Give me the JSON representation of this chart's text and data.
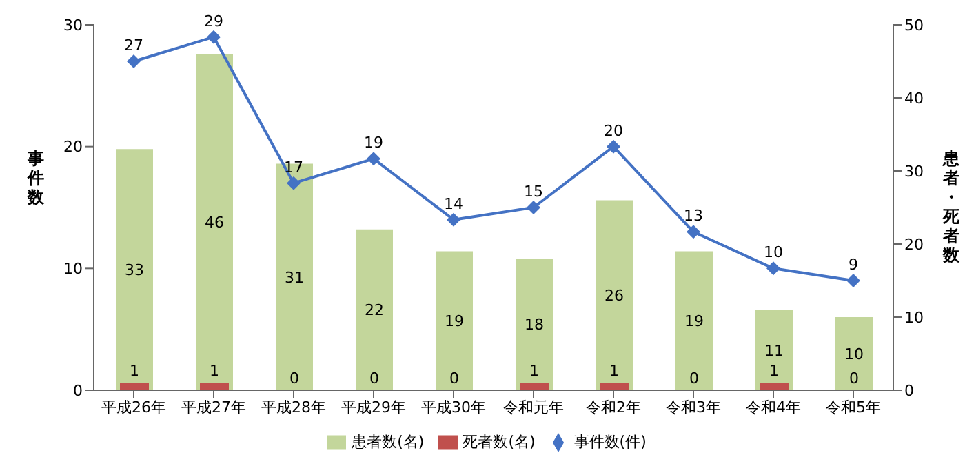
{
  "chart_data": {
    "type": "bar",
    "categories": [
      "平成26年",
      "平成27年",
      "平成28年",
      "平成29年",
      "平成30年",
      "令和元年",
      "令和2年",
      "令和3年",
      "令和4年",
      "令和5年"
    ],
    "series": [
      {
        "name": "患者数(名)",
        "axis": "y2",
        "color": "#c3d69b",
        "values": [
          33,
          46,
          31,
          22,
          19,
          18,
          26,
          19,
          11,
          10
        ]
      },
      {
        "name": "死者数(名)",
        "axis": "y2",
        "color": "#c0504d",
        "values": [
          1,
          1,
          0,
          0,
          0,
          1,
          1,
          0,
          1,
          0
        ]
      },
      {
        "name": "事件数(件)",
        "type": "line",
        "axis": "y",
        "color": "#4472c4",
        "values": [
          27,
          29,
          17,
          19,
          14,
          15,
          20,
          13,
          10,
          9
        ]
      }
    ],
    "ylabel": "事件数",
    "y2label": "患者・死者数",
    "ylim": [
      0,
      30
    ],
    "yticks": [
      0,
      10,
      20,
      30
    ],
    "y2lim": [
      0,
      50
    ],
    "y2ticks": [
      0,
      10,
      20,
      30,
      40,
      50
    ],
    "data_labels": true,
    "legend": "bottom",
    "grid": false,
    "marker": "diamond"
  }
}
